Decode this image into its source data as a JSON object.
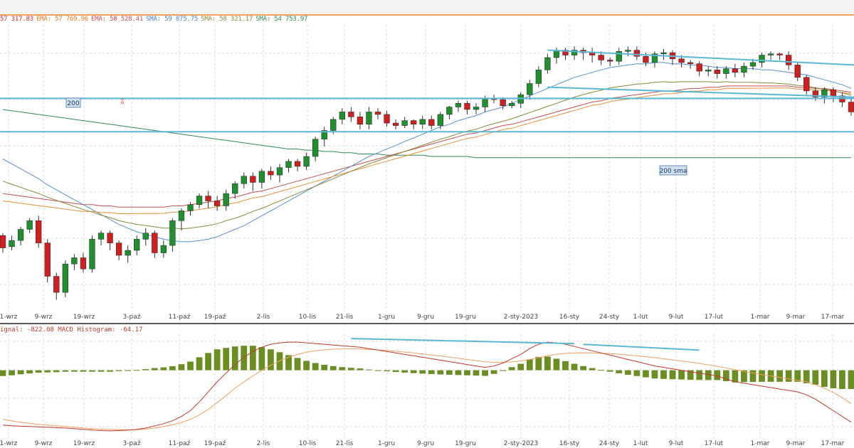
{
  "indicator_header": [
    {
      "text": "57 317.83",
      "color": "#d62728"
    },
    {
      "text": "EMA: 57 769.96",
      "color": "#e07a1f"
    },
    {
      "text": "EMA: 58 528.41",
      "color": "#c0504d"
    },
    {
      "text": "SMA: 59 875.75",
      "color": "#4a7fc1"
    },
    {
      "text": "SMA: 58 321.17",
      "color": "#8a8a3a"
    },
    {
      "text": "SMA: 54 753.97",
      "color": "#2e8b57"
    }
  ],
  "macd_header": "ignal: -822.08  MACD Histogram: -64.17",
  "colors": {
    "bull": "#1f8f2f",
    "bear": "#d11f1f",
    "trendline": "#5bb8d4",
    "grid": "#d9d9d9",
    "histogram": "#6b8e23",
    "macd_line": "#c0392b",
    "signal_line": "#f0a060",
    "sma50": "#8a8a3a",
    "sma200": "#2e8b57",
    "ema_orange": "#e69138",
    "ema_red": "#c0504d",
    "sma_blue": "#5b8fd0"
  },
  "annotations": {
    "label_200": "200",
    "label_200_sma": "200 sma",
    "down_arrow": "⇩"
  },
  "x_labels": [
    "1-wrz",
    "9-wrz",
    "19-wrz",
    "3-paź",
    "11-paź",
    "19-paź",
    "2-lis",
    "10-lis",
    "21-lis",
    "1-gru",
    "9-gru",
    "19-gru",
    "2-sty-2023",
    "16-sty",
    "24-sty",
    "1-lut",
    "9-lut",
    "17-lut",
    "1-mar",
    "9-mar",
    "17-mar"
  ],
  "chart_data": {
    "type": "candlestick",
    "title": "",
    "xlabel": "",
    "ylabel": "",
    "categories": [
      "1-wrz",
      "9-wrz",
      "19-wrz",
      "3-paź",
      "11-paź",
      "19-paź",
      "2-lis",
      "10-lis",
      "21-lis",
      "1-gru",
      "9-gru",
      "19-gru",
      "2-sty-2023",
      "16-sty",
      "24-sty",
      "1-lut",
      "9-lut",
      "17-lut",
      "1-mar",
      "9-mar",
      "17-mar"
    ],
    "price_scale": "hidden",
    "candles": [
      [
        358,
        348,
        344,
        360
      ],
      [
        349,
        354,
        346,
        358
      ],
      [
        354,
        363,
        350,
        365
      ],
      [
        363,
        370,
        360,
        372
      ],
      [
        370,
        352,
        348,
        374
      ],
      [
        352,
        325,
        320,
        355
      ],
      [
        325,
        312,
        306,
        328
      ],
      [
        312,
        335,
        308,
        338
      ],
      [
        335,
        340,
        330,
        343
      ],
      [
        340,
        331,
        328,
        344
      ],
      [
        331,
        355,
        328,
        358
      ],
      [
        355,
        360,
        350,
        362
      ],
      [
        360,
        352,
        346,
        362
      ],
      [
        352,
        342,
        338,
        354
      ],
      [
        342,
        346,
        336,
        350
      ],
      [
        346,
        355,
        342,
        358
      ],
      [
        355,
        360,
        350,
        364
      ],
      [
        360,
        344,
        340,
        362
      ],
      [
        344,
        350,
        340,
        354
      ],
      [
        350,
        370,
        345,
        372
      ],
      [
        370,
        378,
        362,
        380
      ],
      [
        378,
        383,
        374,
        385
      ],
      [
        383,
        390,
        380,
        392
      ],
      [
        390,
        386,
        380,
        394
      ],
      [
        386,
        382,
        378,
        390
      ],
      [
        382,
        392,
        378,
        395
      ],
      [
        392,
        400,
        388,
        402
      ],
      [
        400,
        406,
        396,
        409
      ],
      [
        406,
        401,
        394,
        409
      ],
      [
        401,
        410,
        396,
        412
      ],
      [
        410,
        407,
        403,
        414
      ],
      [
        407,
        413,
        401,
        416
      ],
      [
        413,
        418,
        409,
        420
      ],
      [
        418,
        414,
        410,
        420
      ],
      [
        414,
        422,
        411,
        425
      ],
      [
        422,
        436,
        418,
        438
      ],
      [
        436,
        443,
        430,
        446
      ],
      [
        443,
        452,
        440,
        454
      ],
      [
        452,
        458,
        448,
        461
      ],
      [
        458,
        454,
        450,
        462
      ],
      [
        454,
        448,
        444,
        458
      ],
      [
        448,
        458,
        444,
        462
      ],
      [
        458,
        456,
        452,
        461
      ],
      [
        456,
        449,
        446,
        459
      ],
      [
        449,
        447,
        444,
        452
      ],
      [
        447,
        451,
        445,
        454
      ],
      [
        451,
        448,
        444,
        452
      ],
      [
        448,
        452,
        444,
        455
      ],
      [
        452,
        447,
        444,
        455
      ],
      [
        447,
        456,
        444,
        458
      ],
      [
        456,
        462,
        452,
        463
      ],
      [
        462,
        465,
        458,
        467
      ],
      [
        465,
        460,
        456,
        467
      ],
      [
        460,
        462,
        456,
        465
      ],
      [
        462,
        469,
        458,
        471
      ],
      [
        469,
        468,
        465,
        472
      ],
      [
        468,
        463,
        460,
        470
      ],
      [
        463,
        465,
        461,
        467
      ],
      [
        465,
        472,
        461,
        474
      ],
      [
        472,
        481,
        468,
        484
      ],
      [
        481,
        492,
        478,
        495
      ],
      [
        492,
        502,
        489,
        505
      ],
      [
        502,
        508,
        497,
        510
      ],
      [
        508,
        504,
        500,
        510
      ],
      [
        504,
        508,
        500,
        511
      ],
      [
        508,
        506,
        500,
        510
      ],
      [
        506,
        504,
        498,
        510
      ],
      [
        504,
        500,
        496,
        507
      ],
      [
        500,
        499,
        495,
        502
      ],
      [
        499,
        507,
        496,
        510
      ],
      [
        507,
        508,
        503,
        511
      ],
      [
        508,
        503,
        500,
        511
      ],
      [
        503,
        498,
        495,
        506
      ],
      [
        498,
        505,
        494,
        507
      ],
      [
        505,
        506,
        500,
        509
      ],
      [
        506,
        501,
        496,
        508
      ],
      [
        501,
        498,
        494,
        504
      ],
      [
        498,
        497,
        493,
        500
      ],
      [
        497,
        491,
        487,
        499
      ],
      [
        491,
        492,
        487,
        495
      ],
      [
        492,
        489,
        485,
        495
      ],
      [
        489,
        493,
        485,
        495
      ],
      [
        493,
        490,
        486,
        497
      ],
      [
        490,
        495,
        486,
        498
      ],
      [
        495,
        498,
        492,
        501
      ],
      [
        498,
        504,
        494,
        506
      ],
      [
        504,
        505,
        500,
        507
      ],
      [
        505,
        504,
        500,
        506
      ],
      [
        504,
        496,
        492,
        507
      ],
      [
        496,
        486,
        483,
        498
      ],
      [
        486,
        475,
        472,
        488
      ],
      [
        475,
        470,
        467,
        478
      ],
      [
        470,
        476,
        465,
        478
      ],
      [
        476,
        471,
        466,
        478
      ],
      [
        471,
        466,
        462,
        474
      ],
      [
        466,
        458,
        455,
        469
      ]
    ],
    "sma_fast": [
      420,
      416,
      412,
      408,
      404,
      399,
      395,
      391,
      387,
      383,
      379,
      375,
      371,
      367,
      364,
      361,
      359,
      357,
      355,
      354,
      353,
      353,
      354,
      355,
      357,
      360,
      363,
      366,
      370,
      374,
      378,
      382,
      386,
      390,
      394,
      398,
      402,
      406,
      410,
      414,
      418,
      422,
      425,
      428,
      431,
      434,
      437,
      440,
      443,
      446,
      448,
      451,
      453,
      455,
      458,
      460,
      462,
      465,
      468,
      471,
      474,
      477,
      480,
      483,
      486,
      488,
      490,
      492,
      494,
      495,
      496,
      497,
      497,
      498,
      498,
      497,
      497,
      496,
      496,
      495,
      494,
      494,
      493,
      493,
      493,
      492,
      492,
      491,
      490,
      489,
      488,
      486,
      484,
      482,
      480,
      477
    ],
    "ema_slow": [
      392,
      391,
      390,
      389,
      388,
      387,
      386,
      385,
      384,
      383,
      383,
      382,
      382,
      381,
      381,
      381,
      381,
      381,
      381,
      382,
      382,
      383,
      384,
      385,
      386,
      388,
      389,
      391,
      393,
      394,
      396,
      398,
      400,
      402,
      404,
      406,
      408,
      410,
      412,
      414,
      416,
      418,
      420,
      422,
      424,
      426,
      428,
      430,
      432,
      434,
      436,
      438,
      440,
      441,
      443,
      445,
      447,
      448,
      450,
      452,
      454,
      456,
      458,
      460,
      462,
      464,
      466,
      467,
      469,
      470,
      471,
      472,
      473,
      474,
      475,
      475,
      476,
      477,
      477,
      478,
      478,
      479,
      479,
      479,
      479,
      479,
      479,
      479,
      479,
      478,
      478,
      477,
      477,
      476,
      475,
      474
    ],
    "sma200": [
      460,
      459,
      458,
      457,
      456,
      455,
      454,
      453,
      452,
      451,
      450,
      449,
      448,
      447,
      446,
      445,
      444,
      443,
      442,
      441,
      440,
      439,
      438,
      437,
      436,
      435,
      434,
      433,
      432,
      431,
      430,
      429,
      428,
      428,
      427,
      427,
      426,
      426,
      425,
      425,
      424,
      424,
      424,
      423,
      423,
      423,
      423,
      423,
      422,
      422,
      422,
      422,
      422,
      421,
      421,
      421,
      421,
      421,
      421,
      421,
      421,
      421,
      421,
      421,
      421,
      421,
      421,
      421,
      421,
      421,
      421,
      421,
      421,
      421,
      421,
      421,
      421,
      421,
      421,
      421,
      421,
      421,
      421,
      421,
      421,
      421,
      421,
      421,
      421,
      421,
      421,
      421,
      421,
      421,
      421,
      421
    ],
    "macd": [
      -380,
      -385,
      -388,
      -390,
      -392,
      -395,
      -398,
      -400,
      -405,
      -410,
      -414,
      -418,
      -420,
      -418,
      -415,
      -410,
      -400,
      -385,
      -370,
      -350,
      -320,
      -280,
      -220,
      -150,
      -80,
      -20,
      40,
      90,
      130,
      160,
      180,
      190,
      195,
      195,
      190,
      185,
      180,
      175,
      170,
      165,
      160,
      150,
      140,
      130,
      120,
      110,
      100,
      90,
      80,
      70,
      60,
      50,
      40,
      30,
      20,
      30,
      50,
      80,
      110,
      150,
      180,
      195,
      190,
      180,
      165,
      150,
      135,
      120,
      105,
      90,
      75,
      60,
      45,
      30,
      20,
      10,
      0,
      -10,
      -20,
      -30,
      -40,
      -60,
      -80,
      -90,
      -100,
      -110,
      -120,
      -130,
      -140,
      -150,
      -170,
      -200,
      -240,
      -280,
      -320,
      -360
    ],
    "signal": [
      -340,
      -350,
      -360,
      -368,
      -375,
      -380,
      -385,
      -390,
      -395,
      -400,
      -404,
      -408,
      -410,
      -412,
      -413,
      -412,
      -408,
      -400,
      -390,
      -378,
      -362,
      -340,
      -310,
      -270,
      -225,
      -175,
      -125,
      -80,
      -40,
      0,
      35,
      65,
      90,
      110,
      125,
      135,
      142,
      146,
      148,
      148,
      147,
      145,
      141,
      137,
      132,
      126,
      120,
      113,
      106,
      99,
      91,
      83,
      75,
      67,
      59,
      55,
      55,
      58,
      65,
      75,
      87,
      100,
      110,
      117,
      120,
      121,
      120,
      118,
      115,
      111,
      106,
      100,
      94,
      87,
      80,
      72,
      64,
      56,
      47,
      38,
      28,
      16,
      4,
      -8,
      -19,
      -30,
      -40,
      -50,
      -60,
      -70,
      -80,
      -100,
      -125,
      -155,
      -190,
      -230
    ],
    "histogram": [
      -40,
      -35,
      -28,
      -22,
      -17,
      -15,
      -13,
      -10,
      -10,
      -10,
      -10,
      -10,
      -10,
      -6,
      -2,
      2,
      8,
      15,
      20,
      28,
      42,
      60,
      90,
      120,
      145,
      155,
      165,
      170,
      170,
      160,
      145,
      125,
      105,
      85,
      65,
      50,
      38,
      29,
      22,
      17,
      13,
      5,
      -1,
      -7,
      -12,
      -16,
      -20,
      -23,
      -26,
      -29,
      -31,
      -33,
      -35,
      -37,
      -39,
      -25,
      -5,
      22,
      45,
      75,
      93,
      95,
      80,
      63,
      45,
      29,
      15,
      2,
      -10,
      -21,
      -31,
      -40,
      -49,
      -57,
      -60,
      -62,
      -64,
      -66,
      -67,
      -68,
      -68,
      -76,
      -84,
      -82,
      -81,
      -80,
      -80,
      -80,
      -80,
      -80,
      -90,
      -100,
      -115,
      -125,
      -130,
      -130
    ],
    "trendlines_price": [
      {
        "from": [
          61,
          508
        ],
        "to": [
          95,
          496
        ]
      },
      {
        "from": [
          61,
          478
        ],
        "to": [
          95,
          470
        ]
      },
      {
        "from": [
          0,
          469
        ],
        "to": [
          95,
          469
        ]
      },
      {
        "from": [
          0,
          442
        ],
        "to": [
          95,
          442
        ]
      }
    ],
    "trendlines_macd": [
      {
        "from": [
          39,
          200
        ],
        "to": [
          64,
          165
        ]
      },
      {
        "from": [
          65,
          160
        ],
        "to": [
          78,
          120
        ]
      }
    ]
  }
}
